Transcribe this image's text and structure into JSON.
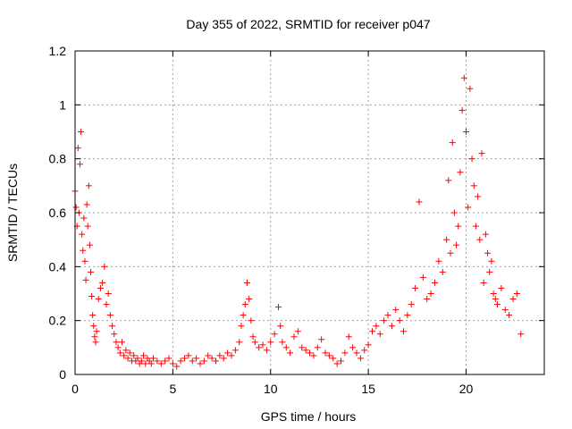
{
  "chart_data": {
    "type": "scatter",
    "title": "Day 355 of 2022, SRMTID for receiver p047",
    "xlabel": "GPS time / hours",
    "ylabel": "SRMTID / TECUs",
    "xlim": [
      0,
      24
    ],
    "ylim": [
      0,
      1.2
    ],
    "xticks": [
      0,
      5,
      10,
      15,
      20
    ],
    "xtick_labels": [
      "0",
      "5",
      "10",
      "15",
      "20"
    ],
    "yticks": [
      0,
      0.2,
      0.4,
      0.6,
      0.8,
      1,
      1.2
    ],
    "ytick_labels": [
      "0",
      "0.2",
      "0.4",
      "0.6",
      "0.8",
      "1",
      "1.2"
    ],
    "grid": true,
    "marker": "+",
    "color": "#ff0000",
    "series": [
      {
        "name": "SRMTID",
        "points": [
          [
            0.0,
            0.68
          ],
          [
            0.05,
            0.62
          ],
          [
            0.1,
            0.55
          ],
          [
            0.15,
            0.84
          ],
          [
            0.2,
            0.6
          ],
          [
            0.25,
            0.78
          ],
          [
            0.3,
            0.9
          ],
          [
            0.35,
            0.52
          ],
          [
            0.4,
            0.46
          ],
          [
            0.45,
            0.58
          ],
          [
            0.5,
            0.42
          ],
          [
            0.55,
            0.35
          ],
          [
            0.6,
            0.63
          ],
          [
            0.65,
            0.55
          ],
          [
            0.7,
            0.7
          ],
          [
            0.75,
            0.48
          ],
          [
            0.8,
            0.38
          ],
          [
            0.85,
            0.29
          ],
          [
            0.9,
            0.22
          ],
          [
            0.95,
            0.18
          ],
          [
            1.0,
            0.14
          ],
          [
            1.05,
            0.12
          ],
          [
            1.1,
            0.16
          ],
          [
            1.2,
            0.28
          ],
          [
            1.3,
            0.32
          ],
          [
            1.4,
            0.34
          ],
          [
            1.5,
            0.4
          ],
          [
            1.6,
            0.26
          ],
          [
            1.7,
            0.3
          ],
          [
            1.8,
            0.22
          ],
          [
            1.9,
            0.18
          ],
          [
            2.0,
            0.15
          ],
          [
            2.1,
            0.12
          ],
          [
            2.2,
            0.1
          ],
          [
            2.3,
            0.08
          ],
          [
            2.4,
            0.12
          ],
          [
            2.5,
            0.07
          ],
          [
            2.6,
            0.09
          ],
          [
            2.7,
            0.06
          ],
          [
            2.8,
            0.08
          ],
          [
            2.9,
            0.05
          ],
          [
            3.0,
            0.07
          ],
          [
            3.1,
            0.05
          ],
          [
            3.2,
            0.06
          ],
          [
            3.3,
            0.04
          ],
          [
            3.4,
            0.05
          ],
          [
            3.5,
            0.07
          ],
          [
            3.6,
            0.04
          ],
          [
            3.7,
            0.06
          ],
          [
            3.8,
            0.05
          ],
          [
            3.9,
            0.04
          ],
          [
            4.0,
            0.06
          ],
          [
            4.2,
            0.05
          ],
          [
            4.4,
            0.04
          ],
          [
            4.6,
            0.05
          ],
          [
            4.8,
            0.06
          ],
          [
            5.0,
            0.04
          ],
          [
            5.2,
            0.03
          ],
          [
            5.4,
            0.05
          ],
          [
            5.6,
            0.06
          ],
          [
            5.8,
            0.07
          ],
          [
            6.0,
            0.05
          ],
          [
            6.2,
            0.06
          ],
          [
            6.4,
            0.04
          ],
          [
            6.6,
            0.05
          ],
          [
            6.8,
            0.07
          ],
          [
            7.0,
            0.06
          ],
          [
            7.2,
            0.05
          ],
          [
            7.4,
            0.07
          ],
          [
            7.6,
            0.06
          ],
          [
            7.8,
            0.08
          ],
          [
            8.0,
            0.07
          ],
          [
            8.2,
            0.09
          ],
          [
            8.4,
            0.12
          ],
          [
            8.5,
            0.18
          ],
          [
            8.6,
            0.22
          ],
          [
            8.7,
            0.26
          ],
          [
            8.8,
            0.34
          ],
          [
            8.9,
            0.28
          ],
          [
            9.0,
            0.2
          ],
          [
            9.1,
            0.14
          ],
          [
            9.2,
            0.12
          ],
          [
            9.4,
            0.1
          ],
          [
            9.6,
            0.11
          ],
          [
            9.8,
            0.09
          ],
          [
            10.0,
            0.12
          ],
          [
            10.2,
            0.15
          ],
          [
            10.4,
            0.25
          ],
          [
            10.5,
            0.18
          ],
          [
            10.6,
            0.12
          ],
          [
            10.8,
            0.1
          ],
          [
            11.0,
            0.08
          ],
          [
            11.2,
            0.14
          ],
          [
            11.4,
            0.16
          ],
          [
            11.6,
            0.1
          ],
          [
            11.8,
            0.09
          ],
          [
            12.0,
            0.08
          ],
          [
            12.2,
            0.07
          ],
          [
            12.4,
            0.1
          ],
          [
            12.6,
            0.13
          ],
          [
            12.8,
            0.08
          ],
          [
            13.0,
            0.07
          ],
          [
            13.2,
            0.06
          ],
          [
            13.4,
            0.04
          ],
          [
            13.6,
            0.05
          ],
          [
            13.8,
            0.08
          ],
          [
            14.0,
            0.14
          ],
          [
            14.2,
            0.1
          ],
          [
            14.4,
            0.08
          ],
          [
            14.6,
            0.06
          ],
          [
            14.8,
            0.09
          ],
          [
            15.0,
            0.11
          ],
          [
            15.2,
            0.16
          ],
          [
            15.4,
            0.18
          ],
          [
            15.6,
            0.15
          ],
          [
            15.8,
            0.2
          ],
          [
            16.0,
            0.22
          ],
          [
            16.2,
            0.18
          ],
          [
            16.4,
            0.24
          ],
          [
            16.6,
            0.2
          ],
          [
            16.8,
            0.16
          ],
          [
            17.0,
            0.22
          ],
          [
            17.2,
            0.26
          ],
          [
            17.4,
            0.32
          ],
          [
            17.6,
            0.64
          ],
          [
            17.8,
            0.36
          ],
          [
            18.0,
            0.28
          ],
          [
            18.2,
            0.3
          ],
          [
            18.4,
            0.34
          ],
          [
            18.6,
            0.42
          ],
          [
            18.8,
            0.38
          ],
          [
            19.0,
            0.5
          ],
          [
            19.1,
            0.72
          ],
          [
            19.2,
            0.45
          ],
          [
            19.3,
            0.86
          ],
          [
            19.4,
            0.6
          ],
          [
            19.5,
            0.48
          ],
          [
            19.6,
            0.55
          ],
          [
            19.7,
            0.75
          ],
          [
            19.8,
            0.98
          ],
          [
            19.9,
            1.1
          ],
          [
            20.0,
            0.9
          ],
          [
            20.1,
            0.62
          ],
          [
            20.2,
            1.06
          ],
          [
            20.3,
            0.8
          ],
          [
            20.4,
            0.7
          ],
          [
            20.5,
            0.55
          ],
          [
            20.6,
            0.66
          ],
          [
            20.7,
            0.5
          ],
          [
            20.8,
            0.82
          ],
          [
            20.9,
            0.34
          ],
          [
            21.0,
            0.52
          ],
          [
            21.1,
            0.45
          ],
          [
            21.2,
            0.38
          ],
          [
            21.3,
            0.42
          ],
          [
            21.4,
            0.3
          ],
          [
            21.5,
            0.28
          ],
          [
            21.6,
            0.26
          ],
          [
            21.8,
            0.32
          ],
          [
            22.0,
            0.24
          ],
          [
            22.2,
            0.22
          ],
          [
            22.4,
            0.28
          ],
          [
            22.6,
            0.3
          ],
          [
            22.8,
            0.15
          ]
        ]
      }
    ]
  }
}
